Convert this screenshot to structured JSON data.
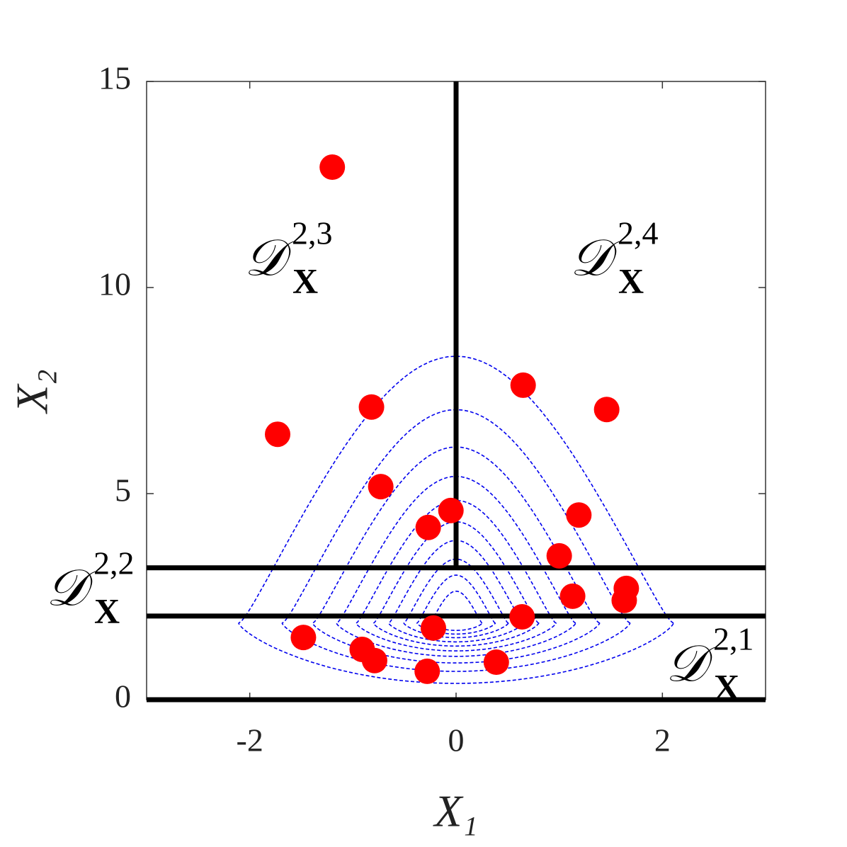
{
  "chart_data": {
    "type": "scatter",
    "xlabel": "X₁",
    "ylabel": "X₂",
    "xlim": [
      -3,
      3
    ],
    "ylim": [
      0,
      15
    ],
    "xticks": [
      -2,
      0,
      2
    ],
    "yticks": [
      0,
      5,
      10,
      15
    ],
    "color": "#ff0000",
    "contour_color": "#0000ee",
    "x": [
      -1.2,
      -1.73,
      -0.82,
      0.65,
      1.46,
      -0.73,
      -0.05,
      -0.27,
      1.19,
      1.0,
      1.13,
      1.65,
      1.63,
      0.64,
      -0.22,
      -1.48,
      -0.91,
      -0.79,
      -0.28,
      0.39
    ],
    "values": [
      12.92,
      6.44,
      7.1,
      7.63,
      7.04,
      5.17,
      4.59,
      4.18,
      4.48,
      3.49,
      2.51,
      2.7,
      2.41,
      2.01,
      1.74,
      1.51,
      1.22,
      0.95,
      0.69,
      0.91
    ],
    "hlines": [
      0,
      2.03,
      3.2
    ],
    "vline": {
      "x": 0,
      "y0": 3.2
    },
    "annotations": [
      {
        "main": "𝒟",
        "sup": "2,3",
        "sub": "X"
      },
      {
        "main": "𝒟",
        "sup": "2,4",
        "sub": "X"
      },
      {
        "main": "𝒟",
        "sup": "2,2",
        "sub": "X"
      },
      {
        "main": "𝒟",
        "sup": "2,1",
        "sub": "X"
      }
    ]
  }
}
